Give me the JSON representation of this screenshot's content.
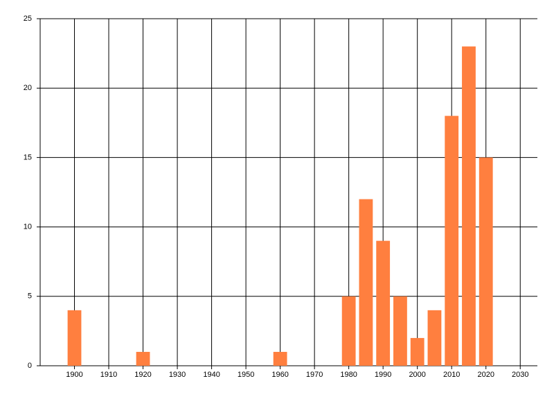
{
  "chart_data": {
    "type": "bar",
    "x": [
      1900,
      1920,
      1960,
      1980,
      1985,
      1990,
      1995,
      2000,
      2005,
      2010,
      2015,
      2020
    ],
    "values": [
      4,
      1,
      1,
      5,
      12,
      9,
      5,
      2,
      4,
      18,
      23,
      15
    ],
    "color": "#ff7f3f",
    "xlim": [
      1890,
      2035
    ],
    "xticks": [
      1900,
      1910,
      1920,
      1930,
      1940,
      1950,
      1960,
      1970,
      1980,
      1990,
      2000,
      2010,
      2020,
      2030
    ],
    "ylim": [
      0,
      25
    ],
    "yticks": [
      0,
      5,
      10,
      15,
      20,
      25
    ],
    "grid": true
  }
}
